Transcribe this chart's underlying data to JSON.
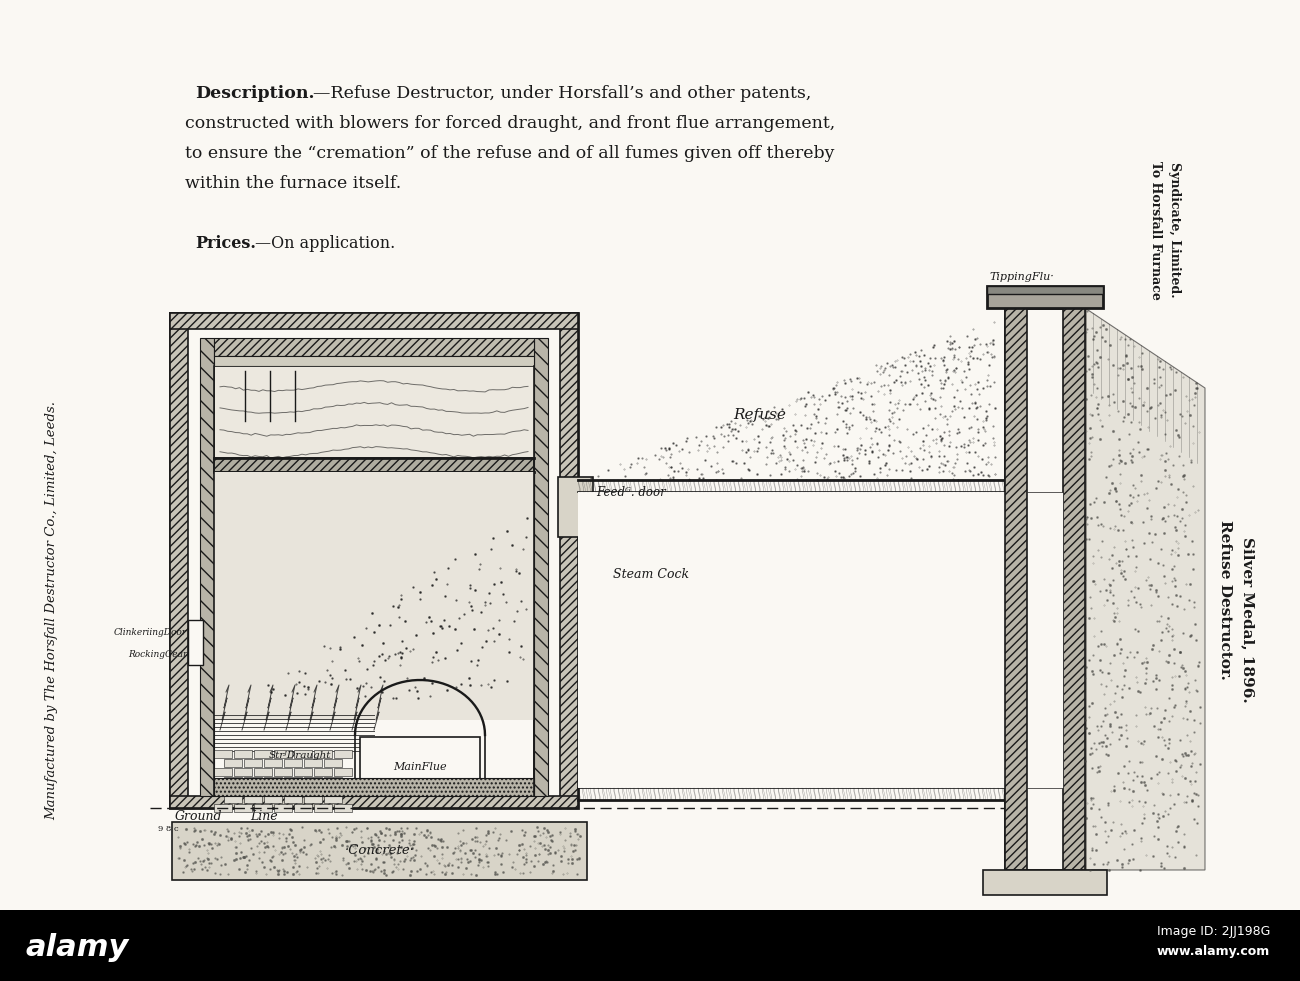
{
  "bg_color": "#faf8f3",
  "ink_color": "#1a1a1a",
  "watermark_bg": "#000000",
  "figure_width": 13.0,
  "figure_height": 9.81,
  "desc_title": "Description.",
  "desc_lines": [
    "—Refuse Destructor, under Horsfall’s and other patents,",
    "constructed with blowers for forced draught, and front flue arrangement,",
    "to ensure the “cremation” of the refuse and of all fumes given off thereby",
    "within the furnace itself."
  ],
  "prices": "Prices.—On application.",
  "left_vert": "Manufactured by The Horsfall Destructor Co., Limited, Leeds.",
  "right_vert1": "To Horsfall Furnace\nSyndicate, Limited.",
  "right_vert2": "Refuse Destructor.\nSilver Medal, 1896.",
  "label_tipping": "TippingFlu·",
  "label_refuse": "Refuse",
  "label_feed": "Feedᴳ. door",
  "label_clinkering": "ClinkeriingDoor",
  "label_rocking": "RockingGear",
  "label_str_draught": "StrᴶDraught",
  "label_main_flue": "MainFlue",
  "label_steam_cock": "Steam Cock",
  "label_ground": "Ground",
  "label_line": "Line",
  "label_concrete": "·Concrete·",
  "watermark_left": "alamy",
  "watermark_right1": "Image ID: 2JJ198G",
  "watermark_right2": "www.alamy.com"
}
